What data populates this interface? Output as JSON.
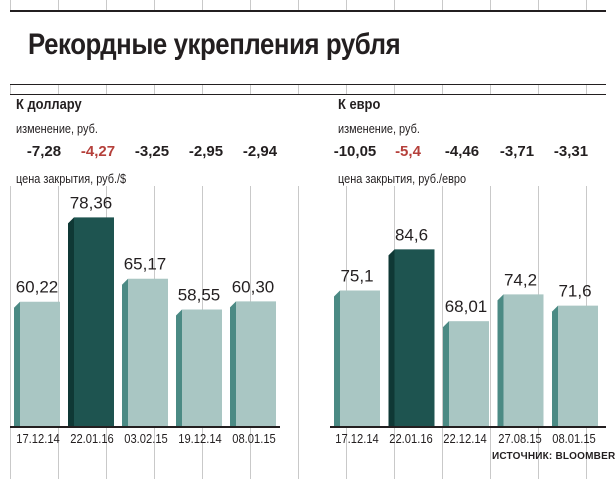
{
  "title": "Рекордные укрепления рубля",
  "source": "ИСТОЧНИК: BLOOMBERG",
  "colors": {
    "bar_light": "#a9c6c3",
    "bar_dark": "#1e5450",
    "side_light": "#4b8a84",
    "side_dark": "#0f3835",
    "red": "#b5403b"
  },
  "chart_data": [
    {
      "type": "bar",
      "title": "К доллару",
      "change_label": "изменение, руб.",
      "value_label": "цена закрытия, руб./$",
      "categories": [
        "17.12.14",
        "22.01.16",
        "03.02.15",
        "19.12.14",
        "08.01.15"
      ],
      "changes": [
        "-7,28",
        "-4,27",
        "-3,25",
        "-2,95",
        "-2,94"
      ],
      "highlight_index": 1,
      "values": [
        60.22,
        78.36,
        65.17,
        58.55,
        60.3
      ],
      "value_labels": [
        "60,22",
        "78,36",
        "65,17",
        "58,55",
        "60,30"
      ]
    },
    {
      "type": "bar",
      "title": "К евро",
      "change_label": "изменение, руб.",
      "value_label": "цена закрытия, руб./евро",
      "categories": [
        "17.12.14",
        "22.01.16",
        "22.12.14",
        "27.08.15",
        "08.01.15"
      ],
      "changes": [
        "-10,05",
        "-5,4",
        "-4,46",
        "-3,71",
        "-3,31"
      ],
      "highlight_index": 1,
      "values": [
        75.1,
        84.6,
        68.01,
        74.2,
        71.6
      ],
      "value_labels": [
        "75,1",
        "84,6",
        "68,01",
        "74,2",
        "71,6"
      ]
    }
  ]
}
